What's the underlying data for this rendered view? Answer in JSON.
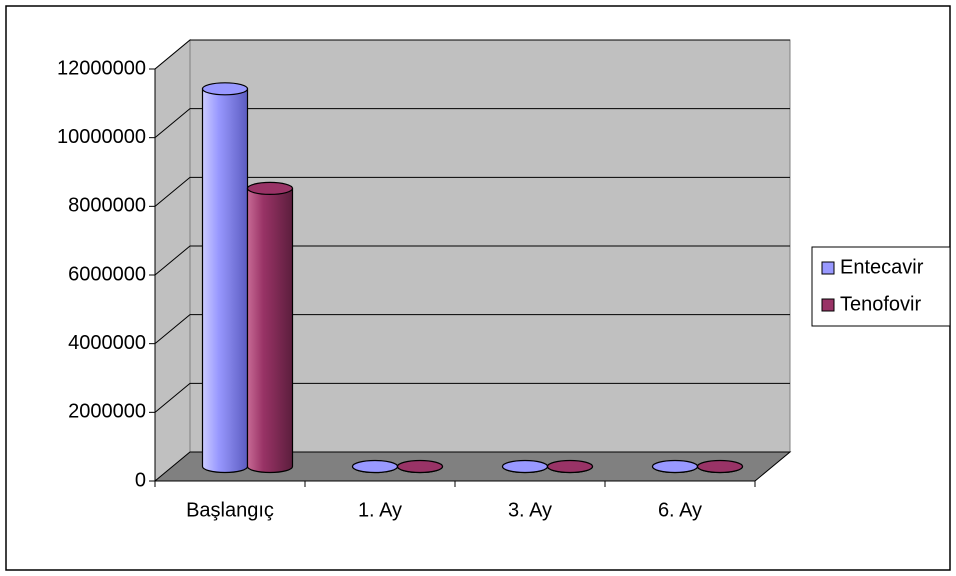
{
  "chart_data": {
    "type": "bar3d",
    "categories": [
      "Başlangıç",
      "1. Ay",
      "3. Ay",
      "6. Ay"
    ],
    "series": [
      {
        "name": "Entecavir",
        "color": "#9999ff",
        "values": [
          11000000,
          0,
          0,
          0
        ]
      },
      {
        "name": "Tenofovir",
        "color": "#993366",
        "values": [
          8100000,
          0,
          0,
          0
        ]
      }
    ],
    "ylim": [
      0,
      12000000
    ],
    "yticks": [
      0,
      2000000,
      4000000,
      6000000,
      8000000,
      10000000,
      12000000
    ],
    "grid": true,
    "legend": "right"
  }
}
